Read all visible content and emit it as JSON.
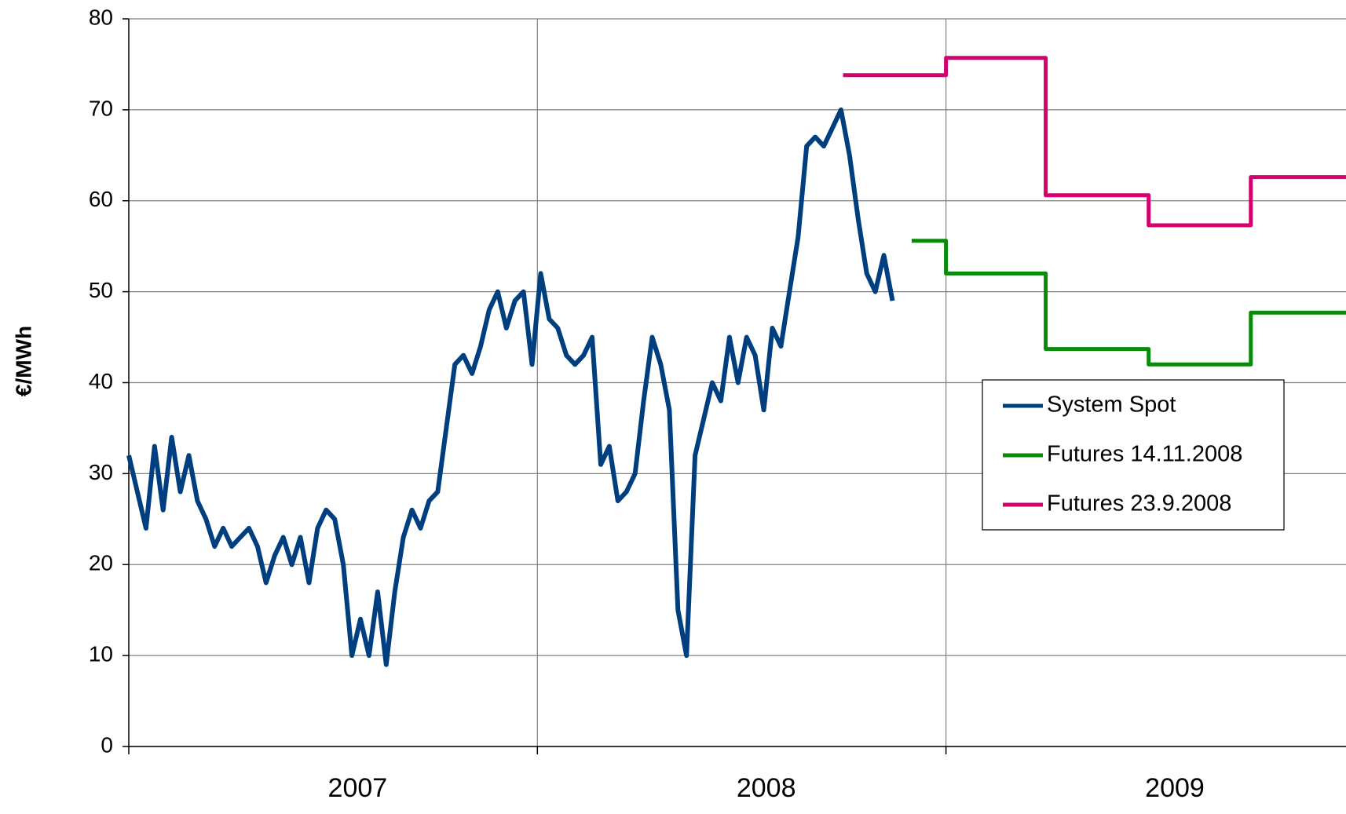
{
  "chart_data": {
    "type": "line",
    "ylabel": "€/MWh",
    "xlim": [
      2007,
      2009.979
    ],
    "xticks": [
      2007,
      2008,
      2009
    ],
    "ylim": [
      0,
      80
    ],
    "yticks": [
      0,
      10,
      20,
      30,
      40,
      50,
      60,
      70,
      80
    ],
    "grid": true,
    "legend": "right",
    "series": [
      {
        "name": "System Spot",
        "color": "#003f7f",
        "x": [
          2007,
          2007.021,
          2007.042,
          2007.063,
          2007.084,
          2007.105,
          2007.126,
          2007.147,
          2007.168,
          2007.189,
          2007.21,
          2007.231,
          2007.252,
          2007.273,
          2007.294,
          2007.315,
          2007.336,
          2007.357,
          2007.378,
          2007.399,
          2007.42,
          2007.441,
          2007.462,
          2007.483,
          2007.504,
          2007.525,
          2007.546,
          2007.567,
          2007.588,
          2007.609,
          2007.63,
          2007.651,
          2007.672,
          2007.693,
          2007.714,
          2007.735,
          2007.756,
          2007.777,
          2007.798,
          2007.819,
          2007.84,
          2007.861,
          2007.882,
          2007.903,
          2007.924,
          2007.945,
          2007.966,
          2007.987,
          2008.008,
          2008.029,
          2008.05,
          2008.071,
          2008.092,
          2008.113,
          2008.134,
          2008.155,
          2008.176,
          2008.197,
          2008.218,
          2008.239,
          2008.26,
          2008.281,
          2008.302,
          2008.323,
          2008.344,
          2008.365,
          2008.386,
          2008.407,
          2008.428,
          2008.449,
          2008.47,
          2008.491,
          2008.512,
          2008.533,
          2008.554,
          2008.575,
          2008.596,
          2008.617,
          2008.638,
          2008.659,
          2008.68,
          2008.701,
          2008.722,
          2008.743,
          2008.764,
          2008.785,
          2008.806,
          2008.827,
          2008.848,
          2008.869
        ],
        "values": [
          32,
          28,
          24,
          33,
          26,
          34,
          28,
          32,
          27,
          25,
          22,
          24,
          22,
          23,
          24,
          22,
          18,
          21,
          23,
          20,
          23,
          18,
          24,
          26,
          25,
          20,
          10,
          14,
          10,
          17,
          9,
          17,
          23,
          26,
          24,
          27,
          28,
          35,
          42,
          43,
          41,
          44,
          48,
          50,
          46,
          49,
          50,
          42,
          52,
          47,
          46,
          43,
          42,
          43,
          45,
          31,
          33,
          27,
          28,
          30,
          38,
          45,
          42,
          37,
          15,
          10,
          32,
          36,
          40,
          38,
          45,
          40,
          45,
          43,
          37,
          46,
          44,
          50,
          56,
          66,
          67,
          66,
          68,
          70,
          65,
          58,
          52,
          50,
          54,
          49
        ]
      },
      {
        "name": "Futures 14.11.2008",
        "color": "#0a8a0a",
        "x": [
          2008.916,
          2009,
          2009,
          2009.244,
          2009.244,
          2009.496,
          2009.496,
          2009.746,
          2009.746,
          2009.979
        ],
        "values": [
          55.6,
          55.6,
          52,
          52,
          43.7,
          43.7,
          42,
          42,
          47.7,
          47.7
        ]
      },
      {
        "name": "Futures 23.9.2008",
        "color": "#d4006e",
        "x": [
          2008.748,
          2009,
          2009,
          2009.244,
          2009.244,
          2009.496,
          2009.496,
          2009.746,
          2009.746,
          2009.979
        ],
        "values": [
          73.8,
          73.8,
          75.7,
          75.7,
          60.6,
          60.6,
          57.3,
          57.3,
          62.6,
          62.6
        ]
      }
    ]
  }
}
